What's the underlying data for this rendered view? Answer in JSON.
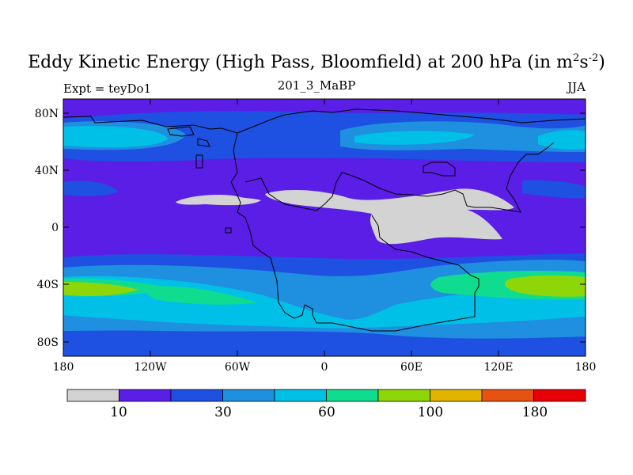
{
  "title": {
    "main": "Eddy Kinetic Energy (High Pass, Bloomfield) at 200 hPa (in m",
    "sup1": "2",
    "mid": "s",
    "sup2": "-2",
    "end": ")"
  },
  "subtitle": "201_3_MaBP",
  "left_label": "Expt = teyDo1",
  "right_label": "JJA",
  "y_ticks": [
    "80N",
    "40N",
    "0",
    "40S",
    "80S"
  ],
  "x_ticks": [
    "180",
    "120W",
    "60W",
    "0",
    "60E",
    "120E",
    "180"
  ],
  "colorbar": {
    "colors": [
      "#d3d3d3",
      "#5a1ee6",
      "#1e50e1",
      "#1f8fe0",
      "#00c0e8",
      "#10dc90",
      "#8fd608",
      "#e0b400",
      "#e65212",
      "#e80008"
    ],
    "labels": [
      "10",
      "30",
      "60",
      "100",
      "180"
    ]
  },
  "palette": {
    "bg": "#5a1ee6",
    "c2": "#1e50e1",
    "c3": "#1f8fe0",
    "c4": "#00c0e8",
    "c5": "#10dc90",
    "c6": "#8fd608",
    "gray": "#d3d3d3"
  }
}
